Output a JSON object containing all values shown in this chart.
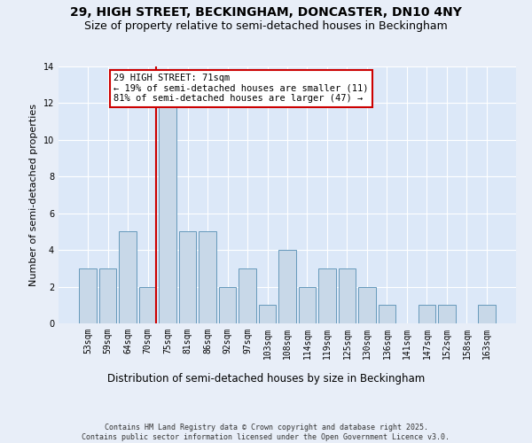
{
  "title": "29, HIGH STREET, BECKINGHAM, DONCASTER, DN10 4NY",
  "subtitle": "Size of property relative to semi-detached houses in Beckingham",
  "xlabel": "Distribution of semi-detached houses by size in Beckingham",
  "ylabel": "Number of semi-detached properties",
  "categories": [
    "53sqm",
    "59sqm",
    "64sqm",
    "70sqm",
    "75sqm",
    "81sqm",
    "86sqm",
    "92sqm",
    "97sqm",
    "103sqm",
    "108sqm",
    "114sqm",
    "119sqm",
    "125sqm",
    "130sqm",
    "136sqm",
    "141sqm",
    "147sqm",
    "152sqm",
    "158sqm",
    "163sqm"
  ],
  "values": [
    3,
    3,
    5,
    2,
    12,
    5,
    5,
    2,
    3,
    1,
    4,
    2,
    3,
    3,
    2,
    1,
    0,
    1,
    1,
    0,
    1
  ],
  "bar_color": "#c8d8e8",
  "bar_edge_color": "#6699bb",
  "highlight_index": 3,
  "red_line_color": "#cc0000",
  "annotation_text": "29 HIGH STREET: 71sqm\n← 19% of semi-detached houses are smaller (11)\n81% of semi-detached houses are larger (47) →",
  "annotation_box_color": "#ffffff",
  "annotation_box_edge_color": "#cc0000",
  "ylim": [
    0,
    14
  ],
  "yticks": [
    0,
    2,
    4,
    6,
    8,
    10,
    12,
    14
  ],
  "footer": "Contains HM Land Registry data © Crown copyright and database right 2025.\nContains public sector information licensed under the Open Government Licence v3.0.",
  "background_color": "#e8eef8",
  "plot_background_color": "#dce8f8",
  "title_fontsize": 10,
  "subtitle_fontsize": 9,
  "tick_fontsize": 7,
  "ylabel_fontsize": 8,
  "xlabel_fontsize": 8.5,
  "footer_fontsize": 6,
  "annotation_fontsize": 7.5
}
